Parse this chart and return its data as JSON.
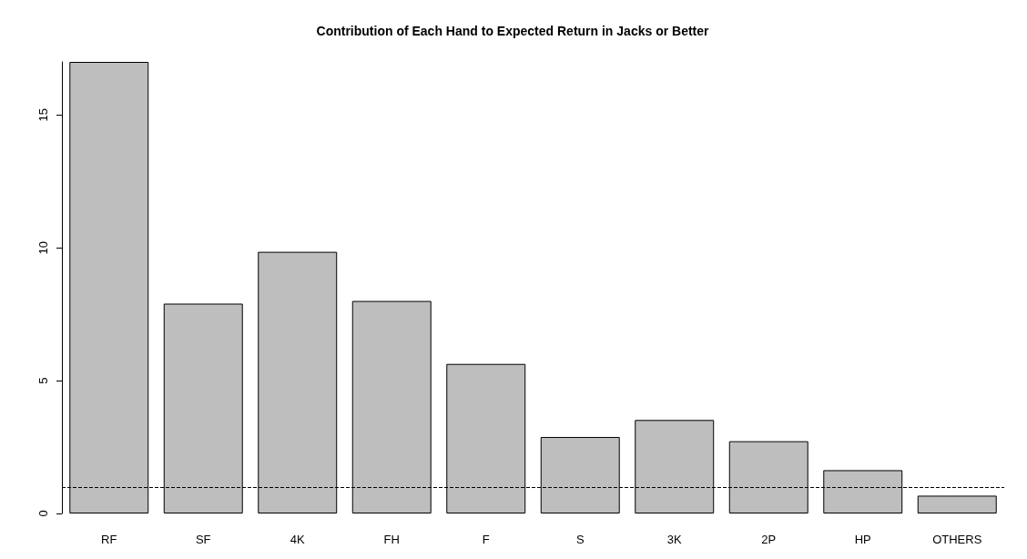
{
  "chart_data": {
    "type": "bar",
    "title": "Contribution of Each Hand to Expected Return in Jacks or Better",
    "categories": [
      "RF",
      "SF",
      "4K",
      "FH",
      "F",
      "S",
      "3K",
      "2P",
      "HP",
      "OTHERS"
    ],
    "values": [
      17.0,
      7.9,
      9.85,
      8.0,
      5.63,
      2.88,
      3.52,
      2.72,
      1.63,
      0.67
    ],
    "color": "#bebebe",
    "ylim": [
      0,
      17
    ],
    "yticks": [
      0,
      5,
      10,
      15
    ],
    "ref_lines": [
      {
        "axis": "y",
        "value": 1,
        "line_style": "dashed",
        "color": "#000000"
      }
    ]
  }
}
